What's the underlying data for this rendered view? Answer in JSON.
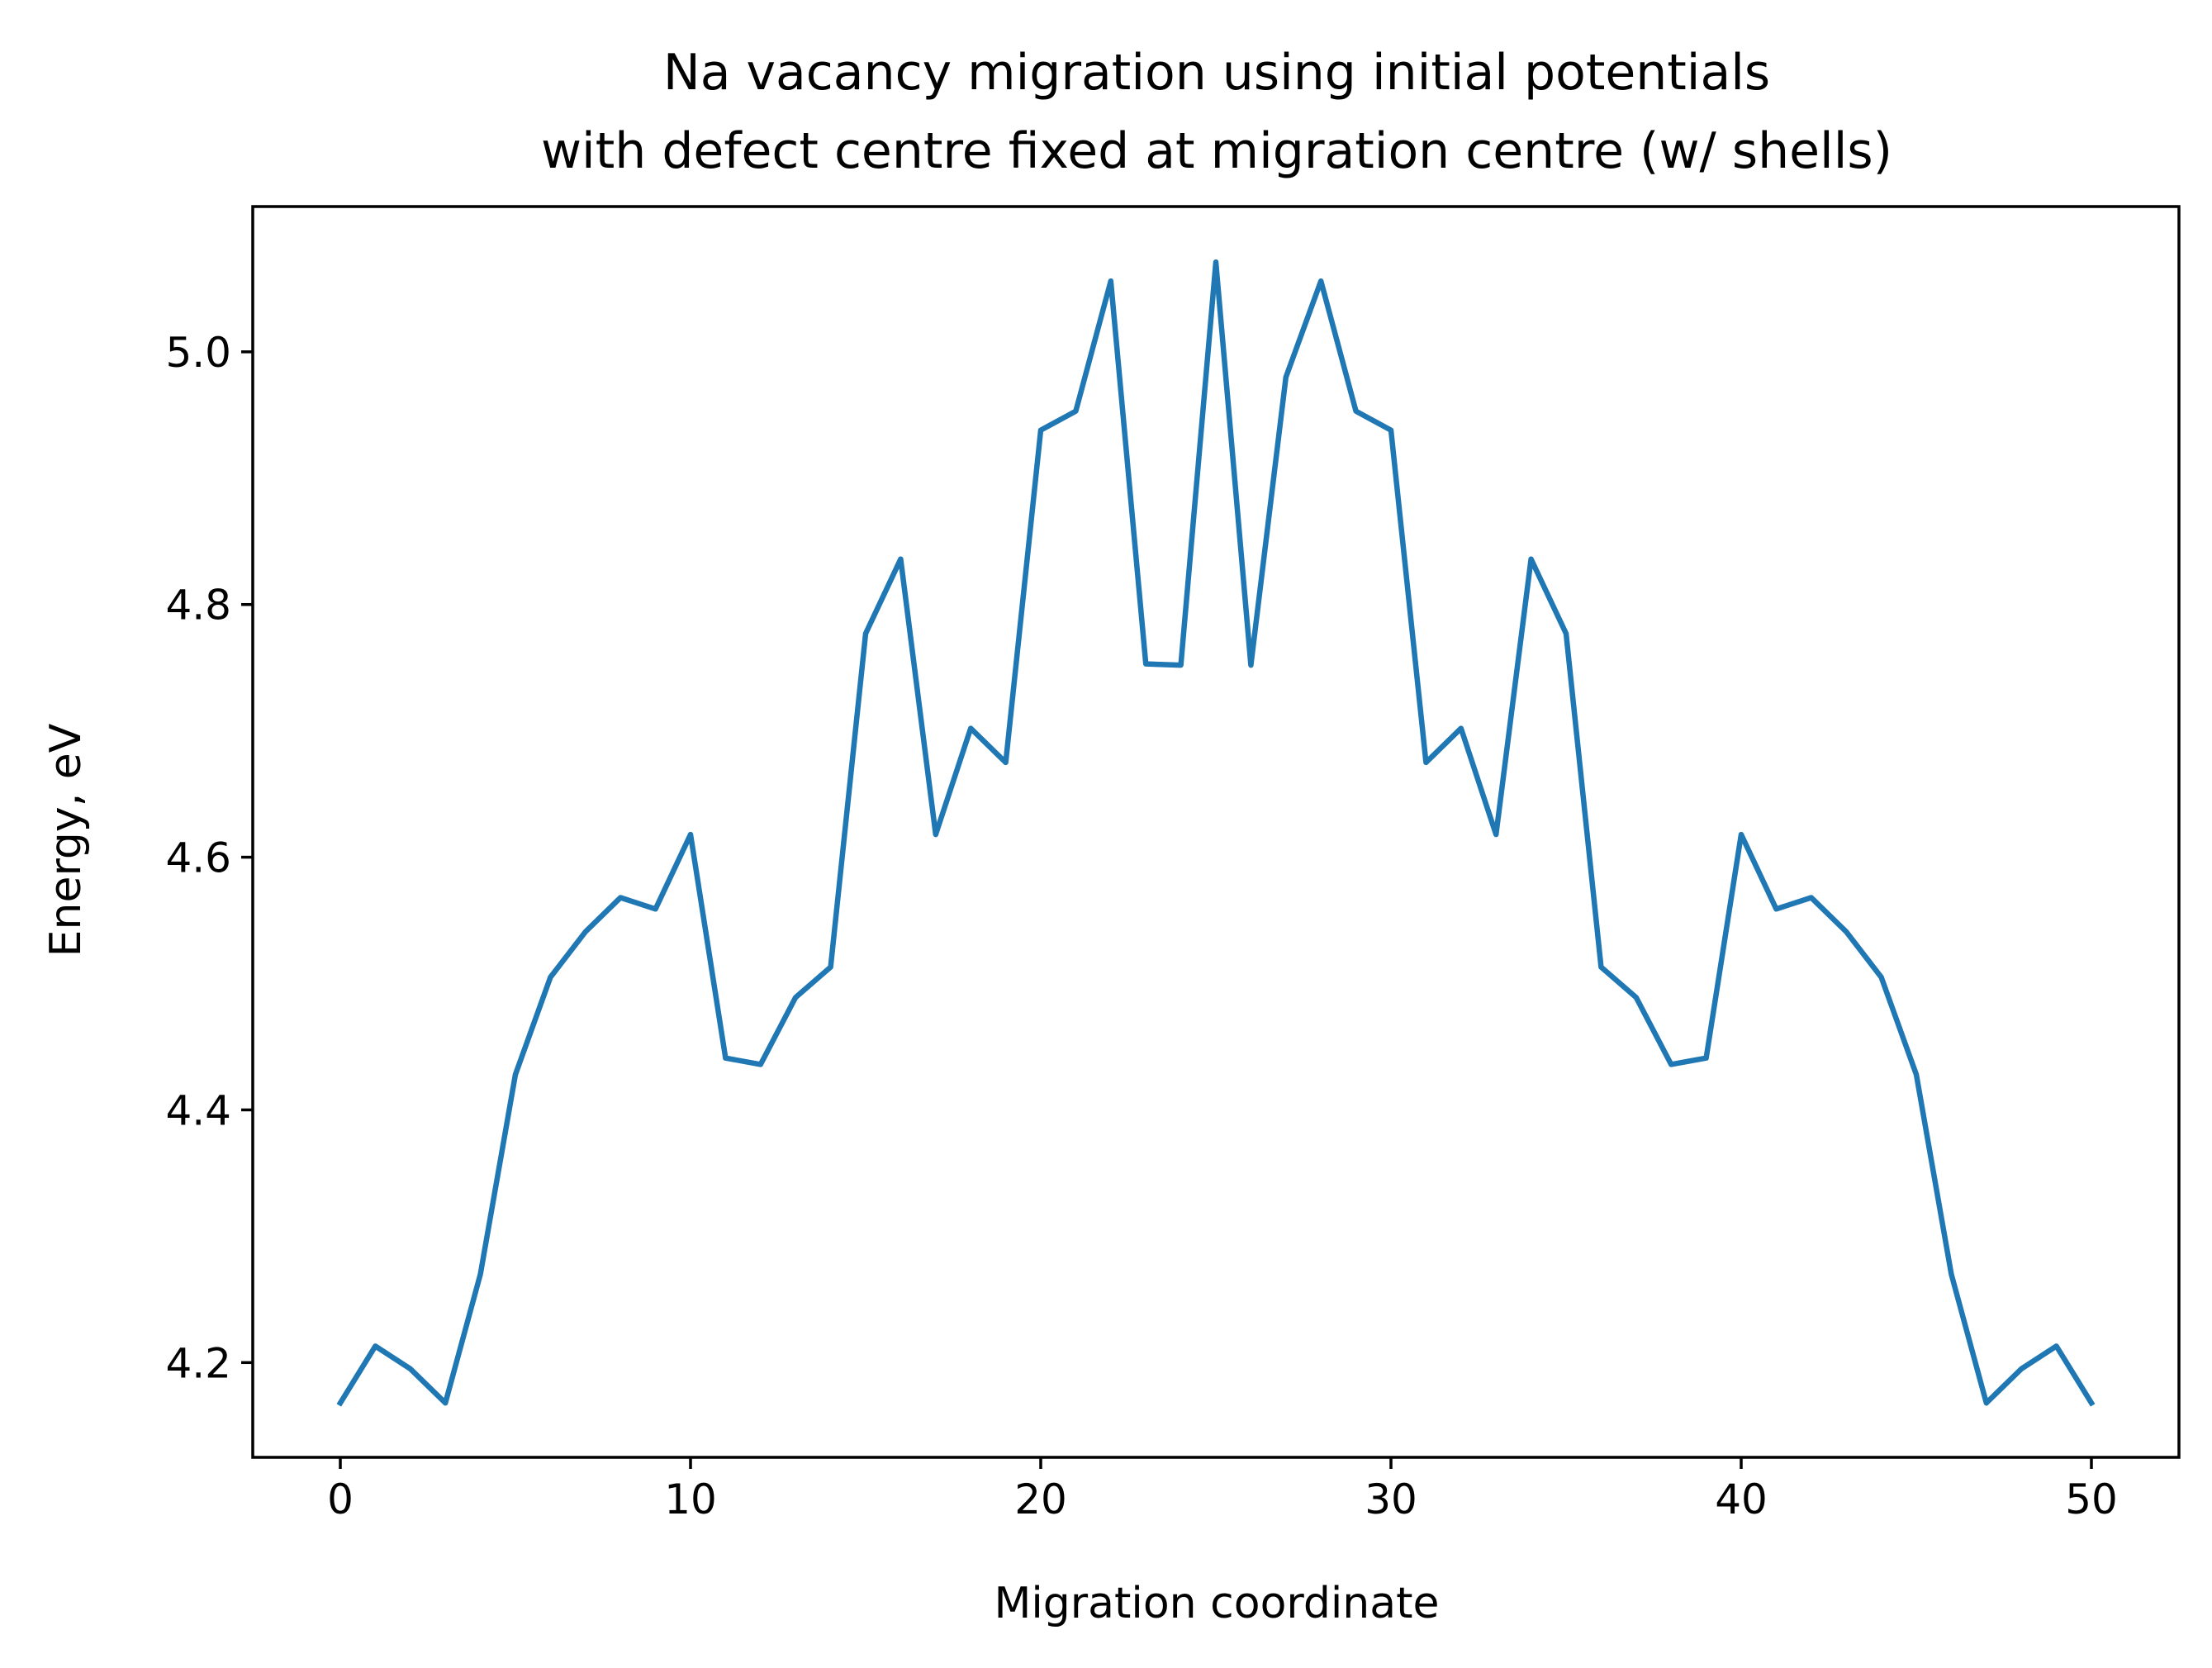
{
  "chart_data": {
    "type": "line",
    "title_lines": [
      "Na vacancy migration using initial potentials",
      "with defect centre fixed at migration centre (w/ shells)"
    ],
    "xlabel": "Migration coordinate",
    "ylabel": "Energy, eV",
    "xlim": [
      -2.5,
      52.5
    ],
    "ylim": [
      4.125,
      5.115
    ],
    "xticks": [
      0,
      10,
      20,
      30,
      40,
      50
    ],
    "xtick_labels": [
      "0",
      "10",
      "20",
      "30",
      "40",
      "50"
    ],
    "yticks": [
      4.2,
      4.4,
      4.6,
      4.8,
      5.0
    ],
    "ytick_labels": [
      "4.2",
      "4.4",
      "4.6",
      "4.8",
      "5.0"
    ],
    "grid": false,
    "line_color": "#1f77b4",
    "series": [
      {
        "x": [
          0,
          1,
          2,
          3,
          4,
          5,
          6,
          7,
          8,
          9,
          10,
          11,
          12,
          13,
          14,
          15,
          16,
          17,
          18,
          19,
          20,
          21,
          22,
          23,
          24,
          25,
          26,
          27,
          28,
          29,
          30,
          31,
          32,
          33,
          34,
          35,
          36,
          37,
          38,
          39,
          40,
          41,
          42,
          43,
          44,
          45,
          46,
          47,
          48,
          49,
          50
        ],
        "values": [
          4.168,
          4.213,
          4.195,
          4.168,
          4.27,
          4.428,
          4.505,
          4.541,
          4.568,
          4.559,
          4.618,
          4.441,
          4.436,
          4.489,
          4.513,
          4.777,
          4.836,
          4.618,
          4.702,
          4.675,
          4.938,
          4.953,
          5.056,
          4.753,
          4.752,
          5.071,
          4.752,
          4.98,
          5.056,
          4.953,
          4.938,
          4.675,
          4.702,
          4.618,
          4.836,
          4.777,
          4.513,
          4.489,
          4.436,
          4.441,
          4.618,
          4.559,
          4.568,
          4.541,
          4.505,
          4.428,
          4.27,
          4.168,
          4.195,
          4.213,
          4.168
        ]
      }
    ]
  }
}
